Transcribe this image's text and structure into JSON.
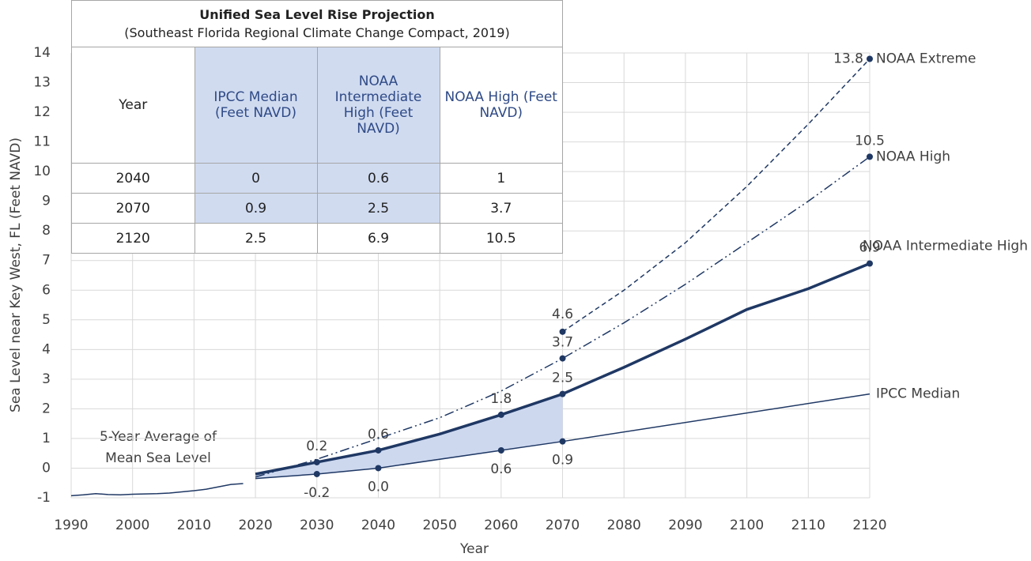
{
  "chart_data": {
    "type": "line",
    "y_label": "Sea Level near Key West, FL (Feet NAVD)",
    "x_label": "Year",
    "xlim": [
      1990,
      2120
    ],
    "xticks": [
      1990,
      2000,
      2010,
      2020,
      2030,
      2040,
      2050,
      2060,
      2070,
      2080,
      2090,
      2100,
      2110,
      2120
    ],
    "ylim": [
      -1,
      14
    ],
    "yticks": [
      -1,
      0,
      1,
      2,
      3,
      4,
      5,
      6,
      7,
      8,
      9,
      10,
      11,
      12,
      13,
      14
    ],
    "grid": true,
    "annotation": [
      "5-Year Average of",
      "Mean Sea Level"
    ],
    "fill_between": {
      "series": [
        1,
        2
      ],
      "x_end": 2070,
      "color": "#cdd8ef"
    },
    "series": [
      {
        "color": "#1f3864",
        "width": 1.5,
        "dash": "solid",
        "x": [
          1990,
          1992,
          1994,
          1996,
          1998,
          2000,
          2002,
          2004,
          2006,
          2008,
          2010,
          2012,
          2014,
          2016,
          2018
        ],
        "values": [
          -0.93,
          -0.9,
          -0.86,
          -0.89,
          -0.9,
          -0.88,
          -0.87,
          -0.86,
          -0.84,
          -0.8,
          -0.76,
          -0.71,
          -0.63,
          -0.55,
          -0.52
        ]
      },
      {
        "name": "IPCC Median",
        "color": "#1f3864",
        "width": 1.5,
        "dash": "solid",
        "x": [
          2020,
          2030,
          2040,
          2060,
          2070,
          2120
        ],
        "values": [
          -0.35,
          -0.2,
          0,
          0.6,
          0.9,
          2.5
        ],
        "value_labels": [
          null,
          "-0.2",
          "0.0",
          "0.6",
          "0.9",
          null
        ]
      },
      {
        "name": "NOAA Intermediate High",
        "color": "#1f3864",
        "width": 3.5,
        "dash": "solid",
        "x": [
          2020,
          2030,
          2040,
          2050,
          2060,
          2070,
          2080,
          2090,
          2100,
          2110,
          2120
        ],
        "values": [
          -0.2,
          0.2,
          0.6,
          1.15,
          1.8,
          2.5,
          3.4,
          4.35,
          5.35,
          6.05,
          6.9
        ],
        "value_labels": [
          null,
          "0.2",
          "0.6",
          null,
          "1.8",
          "2.5",
          null,
          null,
          null,
          null,
          "6.9"
        ]
      },
      {
        "name": "NOAA High",
        "color": "#1f3864",
        "width": 1.5,
        "dash": "dashdotdot",
        "x": [
          2020,
          2030,
          2040,
          2050,
          2060,
          2070,
          2080,
          2090,
          2100,
          2110,
          2120
        ],
        "values": [
          -0.3,
          0.3,
          1.0,
          1.7,
          2.6,
          3.7,
          4.9,
          6.2,
          7.6,
          9.0,
          10.5
        ],
        "value_labels": [
          null,
          null,
          null,
          null,
          null,
          "3.7",
          null,
          null,
          null,
          null,
          "10.5"
        ]
      },
      {
        "name": "NOAA Extreme",
        "color": "#1f3864",
        "width": 1.5,
        "dash": "dashed",
        "x": [
          2070,
          2080,
          2090,
          2100,
          2110,
          2120
        ],
        "values": [
          4.6,
          6.0,
          7.6,
          9.5,
          11.6,
          13.8
        ],
        "value_labels": [
          "4.6",
          null,
          null,
          null,
          null,
          "13.8"
        ]
      }
    ]
  },
  "table": {
    "title": "Unified Sea Level Rise Projection",
    "subtitle": "(Southeast Florida Regional Climate Change Compact, 2019)",
    "header": [
      "Year",
      "IPCC Median (Feet NAVD)",
      "NOAA Intermediate High (Feet NAVD)",
      "NOAA High (Feet NAVD)"
    ],
    "rows": [
      [
        2040,
        0,
        0.6,
        1
      ],
      [
        2070,
        0.9,
        2.5,
        3.7
      ],
      [
        2120,
        2.5,
        6.9,
        10.5
      ]
    ]
  }
}
